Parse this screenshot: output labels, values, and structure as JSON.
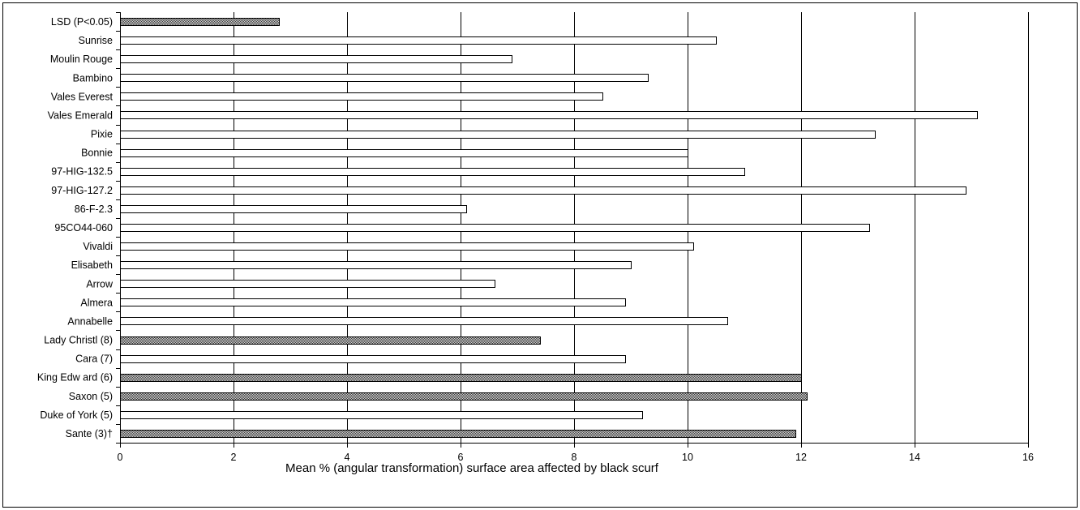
{
  "chart_data": {
    "type": "bar",
    "orientation": "horizontal",
    "xlabel": "Mean % (angular transformation) surface area affected by black scurf",
    "xlim": [
      0,
      16
    ],
    "xticks": [
      0,
      2,
      4,
      6,
      8,
      10,
      12,
      14,
      16
    ],
    "grid": "vertical",
    "categories": [
      "LSD (P<0.05)",
      "Sunrise",
      "Moulin Rouge",
      "Bambino",
      "Vales Everest",
      "Vales Emerald",
      "Pixie",
      "Bonnie",
      "97-HIG-132.5",
      "97-HIG-127.2",
      "86-F-2.3",
      "95CO44-060",
      "Vivaldi",
      "Elisabeth",
      "Arrow",
      "Almera",
      "Annabelle",
      "Lady Christl (8)",
      "Cara (7)",
      "King Edw ard (6)",
      "Saxon (5)",
      "Duke of York (5)",
      "Sante (3)†"
    ],
    "values": [
      2.8,
      10.5,
      6.9,
      9.3,
      8.5,
      15.1,
      13.3,
      10.0,
      11.0,
      14.9,
      6.1,
      13.2,
      10.1,
      9.0,
      6.6,
      8.9,
      10.7,
      7.4,
      8.9,
      12.0,
      12.1,
      9.2,
      11.9
    ],
    "fills": [
      "hatched",
      "white",
      "white",
      "white",
      "white",
      "white",
      "white",
      "white",
      "white",
      "white",
      "white",
      "white",
      "white",
      "white",
      "white",
      "white",
      "white",
      "hatched",
      "white",
      "hatched",
      "hatched",
      "white",
      "hatched"
    ],
    "colors": {
      "bar_outline": "#000000",
      "bar_plain": "#ffffff",
      "hatch_dark": "#3a3a3a",
      "hatch_light": "#d8d8d8",
      "grid": "#000000"
    }
  }
}
